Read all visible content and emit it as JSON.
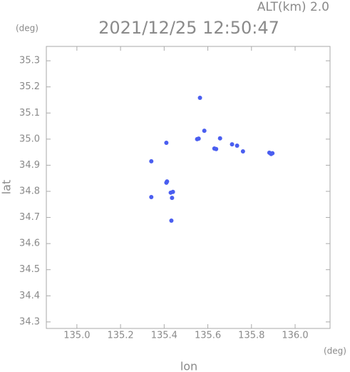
{
  "chart_data": {
    "type": "scatter",
    "title": "2021/12/25 12:50:47",
    "subtitle": "ALT(km) 2.0",
    "x_label": "lon",
    "y_label": "lat",
    "x_unit": "(deg)",
    "y_unit": "(deg)",
    "xlim": [
      134.86,
      136.16
    ],
    "ylim": [
      34.275,
      35.355
    ],
    "xticks": [
      {
        "value": 135.0,
        "label": "135.0"
      },
      135.2,
      135.4,
      135.6,
      135.8,
      {
        "value": 136.0,
        "label": "136.0"
      }
    ],
    "yticks": [
      34.3,
      34.4,
      34.5,
      34.6,
      34.7,
      34.8,
      34.9,
      {
        "value": 35.0,
        "label": "35.0"
      },
      35.1,
      35.2,
      35.3
    ],
    "grid": false,
    "color": "#4a5ef0",
    "x": [
      135.564,
      135.551,
      135.558,
      135.584,
      135.63,
      135.638,
      135.41,
      135.341,
      135.711,
      135.734,
      135.761,
      135.882,
      135.89,
      135.896,
      135.41,
      135.413,
      135.43,
      135.44,
      135.436,
      135.433,
      135.341,
      135.656
    ],
    "values": [
      35.158,
      35.0,
      35.002,
      35.032,
      34.964,
      34.962,
      34.986,
      34.915,
      34.98,
      34.975,
      34.953,
      34.948,
      34.943,
      34.946,
      34.833,
      34.838,
      34.795,
      34.798,
      34.775,
      34.688,
      34.778,
      35.003
    ]
  }
}
